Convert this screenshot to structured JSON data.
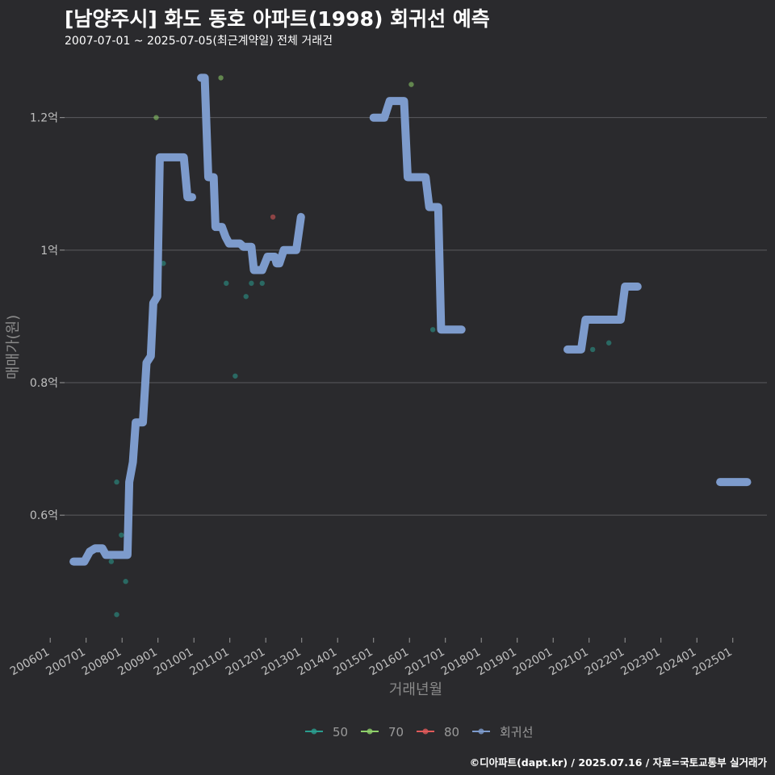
{
  "title": "[남양주시] 화도 동호 아파트(1998) 회귀선 예측",
  "subtitle": "2007-07-01 ~ 2025-07-05(최근계약일) 전체 거래건",
  "caption": "©디아파트(dapt.kr) / 2025.07.16 / 자료=국토교통부 실거래가",
  "chart_data": {
    "type": "scatter",
    "xlabel": "거래년월",
    "ylabel": "매매가(원)",
    "x_range": [
      2006.4,
      2025.95
    ],
    "y_range": [
      0.415,
      1.28
    ],
    "y_ticks": [
      {
        "value": 0.6,
        "label": "0.6억"
      },
      {
        "value": 0.8,
        "label": "0.8억"
      },
      {
        "value": 1.0,
        "label": "1억"
      },
      {
        "value": 1.2,
        "label": "1.2억"
      }
    ],
    "x_ticks": [
      {
        "value": 2006.0,
        "label": "200601"
      },
      {
        "value": 2007.0,
        "label": "200701"
      },
      {
        "value": 2008.0,
        "label": "200801"
      },
      {
        "value": 2009.0,
        "label": "200901"
      },
      {
        "value": 2010.0,
        "label": "201001"
      },
      {
        "value": 2011.0,
        "label": "201101"
      },
      {
        "value": 2012.0,
        "label": "201201"
      },
      {
        "value": 2013.0,
        "label": "201301"
      },
      {
        "value": 2014.0,
        "label": "201401"
      },
      {
        "value": 2015.0,
        "label": "201501"
      },
      {
        "value": 2016.0,
        "label": "201601"
      },
      {
        "value": 2017.0,
        "label": "201701"
      },
      {
        "value": 2018.0,
        "label": "201801"
      },
      {
        "value": 2019.0,
        "label": "201901"
      },
      {
        "value": 2020.0,
        "label": "202001"
      },
      {
        "value": 2021.0,
        "label": "202101"
      },
      {
        "value": 2022.0,
        "label": "202201"
      },
      {
        "value": 2023.0,
        "label": "202301"
      },
      {
        "value": 2024.0,
        "label": "202401"
      },
      {
        "value": 2025.0,
        "label": "202501"
      }
    ],
    "legend": [
      {
        "name": "50",
        "color": "#2a9d8f"
      },
      {
        "name": "70",
        "color": "#8fd16a"
      },
      {
        "name": "80",
        "color": "#e05a5a"
      },
      {
        "name": "회귀선",
        "color": "#7d9bcc"
      }
    ],
    "series": [
      {
        "name": "50",
        "color": "#2a9d8f",
        "points": [
          [
            2007.7,
            0.53
          ],
          [
            2007.85,
            0.45
          ],
          [
            2007.85,
            0.65
          ],
          [
            2007.98,
            0.57
          ],
          [
            2008.1,
            0.5
          ],
          [
            2009.15,
            0.98
          ],
          [
            2010.9,
            0.95
          ],
          [
            2011.15,
            0.81
          ],
          [
            2011.45,
            0.93
          ],
          [
            2011.6,
            0.95
          ],
          [
            2011.9,
            0.95
          ],
          [
            2016.65,
            0.88
          ],
          [
            2021.1,
            0.85
          ],
          [
            2021.55,
            0.86
          ]
        ]
      },
      {
        "name": "70",
        "color": "#8fd16a",
        "points": [
          [
            2008.95,
            1.2
          ],
          [
            2010.75,
            1.26
          ],
          [
            2016.05,
            1.25
          ]
        ]
      },
      {
        "name": "80",
        "color": "#e05a5a",
        "points": [
          [
            2012.2,
            1.05
          ]
        ]
      }
    ],
    "regression": [
      [
        [
          2006.65,
          0.53
        ],
        [
          2006.95,
          0.53
        ],
        [
          2007.1,
          0.545
        ],
        [
          2007.25,
          0.55
        ],
        [
          2007.45,
          0.55
        ],
        [
          2007.55,
          0.54
        ],
        [
          2008.15,
          0.54
        ],
        [
          2008.2,
          0.65
        ],
        [
          2008.3,
          0.68
        ],
        [
          2008.38,
          0.74
        ],
        [
          2008.58,
          0.74
        ],
        [
          2008.68,
          0.83
        ],
        [
          2008.8,
          0.84
        ],
        [
          2008.87,
          0.92
        ],
        [
          2008.98,
          0.93
        ],
        [
          2009.05,
          1.14
        ],
        [
          2009.72,
          1.14
        ],
        [
          2009.82,
          1.08
        ],
        [
          2009.95,
          1.08
        ]
      ],
      [
        [
          2010.2,
          1.26
        ],
        [
          2010.3,
          1.26
        ],
        [
          2010.4,
          1.11
        ],
        [
          2010.55,
          1.11
        ],
        [
          2010.6,
          1.035
        ],
        [
          2010.78,
          1.035
        ],
        [
          2010.88,
          1.02
        ],
        [
          2010.98,
          1.01
        ],
        [
          2011.28,
          1.01
        ],
        [
          2011.38,
          1.005
        ],
        [
          2011.6,
          1.005
        ],
        [
          2011.67,
          0.97
        ],
        [
          2011.9,
          0.97
        ],
        [
          2012.05,
          0.99
        ],
        [
          2012.25,
          0.99
        ],
        [
          2012.3,
          0.98
        ],
        [
          2012.38,
          0.98
        ],
        [
          2012.5,
          1.0
        ],
        [
          2012.85,
          1.0
        ],
        [
          2012.98,
          1.05
        ]
      ],
      [
        [
          2015.0,
          1.2
        ],
        [
          2015.3,
          1.2
        ],
        [
          2015.45,
          1.225
        ],
        [
          2015.85,
          1.225
        ],
        [
          2015.95,
          1.11
        ],
        [
          2016.45,
          1.11
        ],
        [
          2016.55,
          1.065
        ],
        [
          2016.8,
          1.065
        ],
        [
          2016.88,
          0.88
        ],
        [
          2017.45,
          0.88
        ]
      ],
      [
        [
          2020.4,
          0.85
        ],
        [
          2020.78,
          0.85
        ],
        [
          2020.9,
          0.895
        ],
        [
          2021.88,
          0.895
        ],
        [
          2022.0,
          0.945
        ],
        [
          2022.35,
          0.945
        ]
      ],
      [
        [
          2024.65,
          0.65
        ],
        [
          2025.4,
          0.65
        ]
      ]
    ]
  }
}
